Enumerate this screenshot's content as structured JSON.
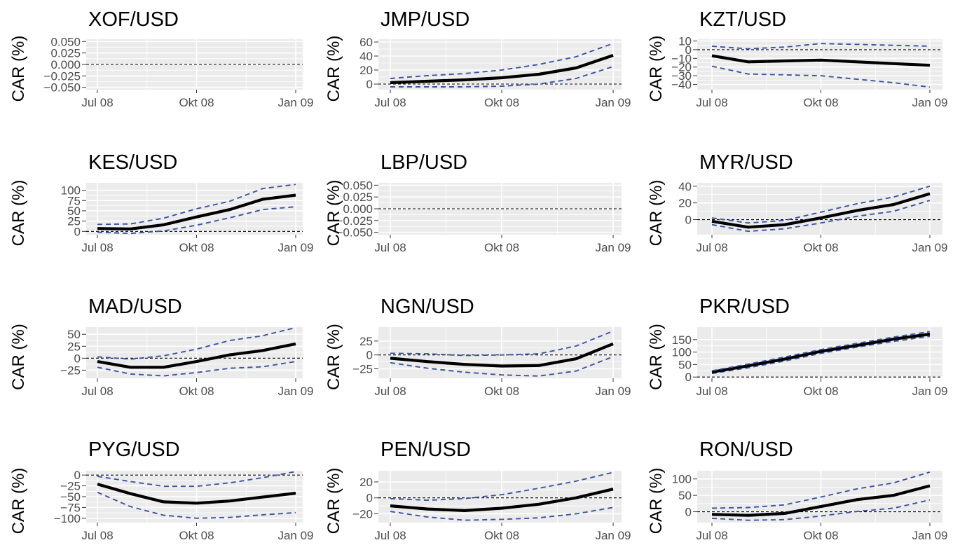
{
  "figure": {
    "colors": {
      "panel_bg": "#ebebeb",
      "grid": "#ffffff",
      "estimate": "#000000",
      "bands": "#3a53a4",
      "zero": "#000000",
      "tick_text": "#4d4d4d"
    }
  },
  "chart_data": [
    {
      "type": "line",
      "title": "XOF/USD",
      "ylabel": "CAR (%)",
      "x": [
        "Jul 08",
        "Aug 08",
        "Sep 08",
        "Okt 08",
        "Nov 08",
        "Dez 08",
        "Jan 09"
      ],
      "x_ticks": [
        "Jul 08",
        "Okt 08",
        "Jan 09"
      ],
      "ylim": [
        -0.055,
        0.055
      ],
      "y_ticks": [
        -0.05,
        -0.025,
        0.0,
        0.025,
        0.05
      ],
      "y_tick_labels": [
        "−0.050",
        "−0.025",
        "0.000",
        "0.025",
        "0.050"
      ],
      "series": [],
      "zero_line": true
    },
    {
      "type": "line",
      "title": "JMP/USD",
      "ylabel": "CAR (%)",
      "x": [
        "Jul 08",
        "Aug 08",
        "Sep 08",
        "Okt 08",
        "Nov 08",
        "Dez 08",
        "Jan 09"
      ],
      "x_ticks": [
        "Jul 08",
        "Okt 08",
        "Jan 09"
      ],
      "ylim": [
        -8,
        64
      ],
      "y_ticks": [
        0,
        20,
        40,
        60
      ],
      "y_tick_labels": [
        "0",
        "20",
        "40",
        "60"
      ],
      "series": [
        {
          "role": "lower",
          "values": [
            -4,
            -4,
            -4,
            -3,
            0,
            8,
            25
          ]
        },
        {
          "role": "estimate",
          "values": [
            2,
            4,
            6,
            9,
            14,
            23,
            41
          ]
        },
        {
          "role": "upper",
          "values": [
            8,
            12,
            15,
            20,
            28,
            39,
            58
          ]
        }
      ],
      "zero_line": true
    },
    {
      "type": "line",
      "title": "KZT/USD",
      "ylabel": "CAR (%)",
      "x": [
        "Jul 08",
        "Aug 08",
        "Sep 08",
        "Okt 08",
        "Nov 08",
        "Dez 08",
        "Jan 09"
      ],
      "x_ticks": [
        "Jul 08",
        "Okt 08",
        "Jan 09"
      ],
      "ylim": [
        -46,
        12
      ],
      "y_ticks": [
        -40,
        -30,
        -20,
        -10,
        0,
        10
      ],
      "y_tick_labels": [
        "−40",
        "−30",
        "−20",
        "−10",
        "0",
        "10"
      ],
      "series": [
        {
          "role": "lower",
          "values": [
            -19,
            -28,
            -29,
            -30,
            -34,
            -38,
            -43
          ]
        },
        {
          "role": "estimate",
          "values": [
            -7,
            -14,
            -13,
            -12,
            -14,
            -16,
            -18
          ]
        },
        {
          "role": "upper",
          "values": [
            4,
            1,
            3,
            7,
            6,
            5,
            4
          ]
        }
      ],
      "zero_line": true
    },
    {
      "type": "line",
      "title": "KES/USD",
      "ylabel": "CAR (%)",
      "x": [
        "Jul 08",
        "Aug 08",
        "Sep 08",
        "Okt 08",
        "Nov 08",
        "Dez 08",
        "Jan 09"
      ],
      "x_ticks": [
        "Jul 08",
        "Okt 08",
        "Jan 09"
      ],
      "ylim": [
        -8,
        118
      ],
      "y_ticks": [
        0,
        25,
        50,
        75,
        100
      ],
      "y_tick_labels": [
        "0",
        "25",
        "50",
        "75",
        "100"
      ],
      "series": [
        {
          "role": "lower",
          "values": [
            -2,
            -5,
            1,
            15,
            33,
            53,
            60
          ]
        },
        {
          "role": "estimate",
          "values": [
            7,
            6,
            16,
            35,
            53,
            78,
            88
          ]
        },
        {
          "role": "upper",
          "values": [
            17,
            18,
            32,
            55,
            73,
            104,
            114
          ]
        }
      ],
      "zero_line": true
    },
    {
      "type": "line",
      "title": "LBP/USD",
      "ylabel": "CAR (%)",
      "x": [
        "Jul 08",
        "Aug 08",
        "Sep 08",
        "Okt 08",
        "Nov 08",
        "Dez 08",
        "Jan 09"
      ],
      "x_ticks": [
        "Jul 08",
        "Okt 08",
        "Jan 09"
      ],
      "ylim": [
        -0.055,
        0.055
      ],
      "y_ticks": [
        -0.05,
        -0.025,
        0.0,
        0.025,
        0.05
      ],
      "y_tick_labels": [
        "−0.050",
        "−0.025",
        "0.000",
        "0.025",
        "0.050"
      ],
      "series": [],
      "zero_line": true
    },
    {
      "type": "line",
      "title": "MYR/USD",
      "ylabel": "CAR (%)",
      "x": [
        "Jul 08",
        "Aug 08",
        "Sep 08",
        "Okt 08",
        "Nov 08",
        "Dez 08",
        "Jan 09"
      ],
      "x_ticks": [
        "Jul 08",
        "Okt 08",
        "Jan 09"
      ],
      "ylim": [
        -18,
        44
      ],
      "y_ticks": [
        0,
        20,
        40
      ],
      "y_tick_labels": [
        "0",
        "20",
        "40"
      ],
      "series": [
        {
          "role": "lower",
          "values": [
            -6,
            -14,
            -11,
            -4,
            4,
            10,
            23
          ]
        },
        {
          "role": "estimate",
          "values": [
            -2,
            -9,
            -6,
            2,
            11,
            18,
            31
          ]
        },
        {
          "role": "upper",
          "values": [
            2,
            -4,
            -1,
            9,
            19,
            27,
            40
          ]
        }
      ],
      "zero_line": true
    },
    {
      "type": "line",
      "title": "MAD/USD",
      "ylabel": "CAR (%)",
      "x": [
        "Jul 08",
        "Aug 08",
        "Sep 08",
        "Okt 08",
        "Nov 08",
        "Dez 08",
        "Jan 09"
      ],
      "x_ticks": [
        "Jul 08",
        "Okt 08",
        "Jan 09"
      ],
      "ylim": [
        -42,
        65
      ],
      "y_ticks": [
        -25,
        0,
        25,
        50
      ],
      "y_tick_labels": [
        "−25",
        "0",
        "25",
        "50"
      ],
      "series": [
        {
          "role": "lower",
          "values": [
            -19,
            -33,
            -37,
            -30,
            -21,
            -18,
            -7
          ]
        },
        {
          "role": "estimate",
          "values": [
            -7,
            -19,
            -19,
            -7,
            7,
            16,
            30
          ]
        },
        {
          "role": "upper",
          "values": [
            3,
            -2,
            5,
            19,
            37,
            47,
            64
          ]
        }
      ],
      "zero_line": true
    },
    {
      "type": "line",
      "title": "NGN/USD",
      "ylabel": "CAR (%)",
      "x": [
        "Jul 08",
        "Aug 08",
        "Sep 08",
        "Okt 08",
        "Nov 08",
        "Dez 08",
        "Jan 09"
      ],
      "x_ticks": [
        "Jul 08",
        "Okt 08",
        "Jan 09"
      ],
      "ylim": [
        -42,
        50
      ],
      "y_ticks": [
        -25,
        0,
        25
      ],
      "y_tick_labels": [
        "−25",
        "0",
        "25"
      ],
      "series": [
        {
          "role": "lower",
          "values": [
            -14,
            -24,
            -31,
            -36,
            -38,
            -29,
            -3
          ]
        },
        {
          "role": "estimate",
          "values": [
            -6,
            -12,
            -17,
            -20,
            -19,
            -7,
            20
          ]
        },
        {
          "role": "upper",
          "values": [
            3,
            2,
            -1,
            0,
            2,
            16,
            43
          ]
        }
      ],
      "zero_line": true
    },
    {
      "type": "line",
      "title": "PKR/USD",
      "ylabel": "CAR (%)",
      "x": [
        "Jul 08",
        "Aug 08",
        "Sep 08",
        "Okt 08",
        "Nov 08",
        "Dez 08",
        "Jan 09"
      ],
      "x_ticks": [
        "Jul 08",
        "Okt 08",
        "Jan 09"
      ],
      "ylim": [
        -5,
        200
      ],
      "y_ticks": [
        0,
        50,
        100,
        150
      ],
      "y_tick_labels": [
        "0",
        "50",
        "100",
        "150"
      ],
      "series": [
        {
          "role": "lower",
          "values": [
            14,
            37,
            64,
            95,
            120,
            143,
            163
          ]
        },
        {
          "role": "estimate",
          "values": [
            20,
            45,
            72,
            103,
            127,
            152,
            172
          ]
        },
        {
          "role": "upper",
          "values": [
            25,
            52,
            80,
            110,
            135,
            160,
            182
          ]
        }
      ],
      "zero_line": true
    },
    {
      "type": "line",
      "title": "PYG/USD",
      "ylabel": "CAR (%)",
      "x": [
        "Jul 08",
        "Aug 08",
        "Sep 08",
        "Okt 08",
        "Nov 08",
        "Dez 08",
        "Jan 09"
      ],
      "x_ticks": [
        "Jul 08",
        "Okt 08",
        "Jan 09"
      ],
      "ylim": [
        -110,
        10
      ],
      "y_ticks": [
        -100,
        -75,
        -50,
        -25,
        0
      ],
      "y_tick_labels": [
        "−100",
        "−75",
        "−50",
        "−25",
        "0"
      ],
      "series": [
        {
          "role": "lower",
          "values": [
            -40,
            -73,
            -93,
            -100,
            -98,
            -92,
            -87
          ]
        },
        {
          "role": "estimate",
          "values": [
            -21,
            -43,
            -62,
            -65,
            -60,
            -51,
            -42
          ]
        },
        {
          "role": "upper",
          "values": [
            -3,
            -15,
            -26,
            -26,
            -18,
            -6,
            8
          ]
        }
      ],
      "zero_line": true
    },
    {
      "type": "line",
      "title": "PEN/USD",
      "ylabel": "CAR (%)",
      "x": [
        "Jul 08",
        "Aug 08",
        "Sep 08",
        "Okt 08",
        "Nov 08",
        "Dez 08",
        "Jan 09"
      ],
      "x_ticks": [
        "Jul 08",
        "Okt 08",
        "Jan 09"
      ],
      "ylim": [
        -31,
        34
      ],
      "y_ticks": [
        -20,
        0,
        20
      ],
      "y_tick_labels": [
        "−20",
        "0",
        "20"
      ],
      "series": [
        {
          "role": "lower",
          "values": [
            -17,
            -24,
            -28,
            -27,
            -25,
            -20,
            -12
          ]
        },
        {
          "role": "estimate",
          "values": [
            -10,
            -14,
            -16,
            -13,
            -8,
            0,
            11
          ]
        },
        {
          "role": "upper",
          "values": [
            -1,
            -3,
            -1,
            4,
            12,
            21,
            32
          ]
        }
      ],
      "zero_line": true
    },
    {
      "type": "line",
      "title": "RON/USD",
      "ylabel": "CAR (%)",
      "x": [
        "Jul 08",
        "Aug 08",
        "Sep 08",
        "Okt 08",
        "Nov 08",
        "Dez 08",
        "Jan 09"
      ],
      "x_ticks": [
        "Jul 08",
        "Okt 08",
        "Jan 09"
      ],
      "ylim": [
        -33,
        125
      ],
      "y_ticks": [
        0,
        50,
        100
      ],
      "y_tick_labels": [
        "0",
        "50",
        "100"
      ],
      "series": [
        {
          "role": "lower",
          "values": [
            -20,
            -26,
            -24,
            -13,
            1,
            11,
            36
          ]
        },
        {
          "role": "estimate",
          "values": [
            -8,
            -11,
            -5,
            16,
            37,
            50,
            79
          ]
        },
        {
          "role": "upper",
          "values": [
            11,
            13,
            21,
            45,
            70,
            88,
            121
          ]
        }
      ],
      "zero_line": true
    }
  ]
}
